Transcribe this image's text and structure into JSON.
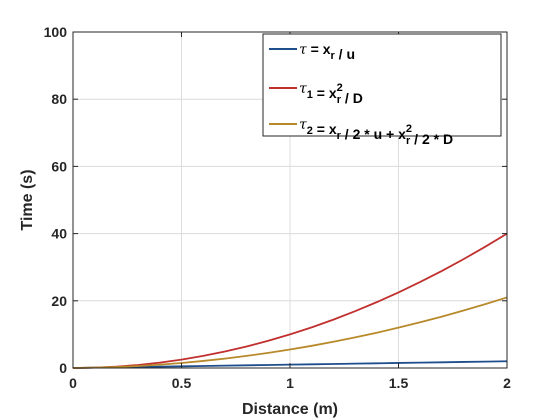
{
  "chart_data": {
    "type": "line",
    "xlabel": "Distance (m)",
    "ylabel": "Time (s)",
    "xlim": [
      0,
      2
    ],
    "ylim": [
      0,
      100
    ],
    "xticks": [
      0,
      0.5,
      1,
      1.5,
      2
    ],
    "xtick_labels": [
      "0",
      "0.5",
      "1",
      "1.5",
      "2"
    ],
    "yticks": [
      0,
      20,
      40,
      60,
      80,
      100
    ],
    "ytick_labels": [
      "0",
      "20",
      "40",
      "60",
      "80",
      "100"
    ],
    "grid": true,
    "legend_position": "top-right",
    "x": [
      0,
      0.1,
      0.2,
      0.3,
      0.4,
      0.5,
      0.6,
      0.7,
      0.8,
      0.9,
      1.0,
      1.1,
      1.2,
      1.3,
      1.4,
      1.5,
      1.6,
      1.7,
      1.8,
      1.9,
      2.0
    ],
    "series": [
      {
        "legend": {
          "greek": "τ",
          "sub1": "",
          "rest": [
            {
              "t": " = x",
              "k": "n"
            },
            {
              "t": "r",
              "k": "sub"
            },
            {
              "t": " / u",
              "k": "n"
            }
          ]
        },
        "color": "#1f4e8c",
        "values": [
          0,
          0.1,
          0.2,
          0.3,
          0.4,
          0.5,
          0.6,
          0.7,
          0.8,
          0.9,
          1.0,
          1.1,
          1.2,
          1.3,
          1.4,
          1.5,
          1.6,
          1.7,
          1.8,
          1.9,
          2.0
        ]
      },
      {
        "legend": {
          "greek": "τ",
          "sub1": "1",
          "rest": [
            {
              "t": " = x",
              "k": "n"
            },
            {
              "t": "2",
              "k": "sup"
            },
            {
              "t": "r",
              "k": "sub"
            },
            {
              "t": " / D",
              "k": "n"
            }
          ]
        },
        "color": "#c0302e",
        "values": [
          0,
          0.1,
          0.4,
          0.9,
          1.6,
          2.5,
          3.6,
          4.9,
          6.4,
          8.1,
          10.0,
          12.1,
          14.4,
          16.9,
          19.6,
          22.5,
          25.6,
          28.9,
          32.4,
          36.1,
          40.0
        ]
      },
      {
        "legend": {
          "greek": "τ",
          "sub1": "2",
          "rest": [
            {
              "t": " = x",
              "k": "n"
            },
            {
              "t": "r",
              "k": "sub"
            },
            {
              "t": " / 2 * u + x",
              "k": "n"
            },
            {
              "t": "2",
              "k": "sup"
            },
            {
              "t": "r",
              "k": "sub"
            },
            {
              "t": " / 2 * D",
              "k": "n"
            }
          ]
        },
        "color": "#b8892a",
        "values": [
          0,
          0.1,
          0.3,
          0.6,
          1.0,
          1.5,
          2.1,
          2.8,
          3.6,
          4.5,
          5.5,
          6.6,
          7.8,
          9.1,
          10.5,
          12.0,
          13.6,
          15.3,
          17.1,
          19.0,
          21.0
        ]
      }
    ]
  }
}
